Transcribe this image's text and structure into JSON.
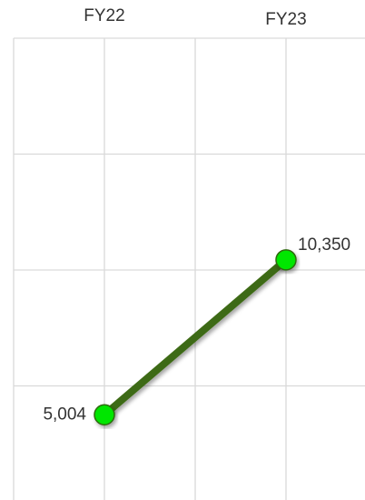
{
  "chart_data": {
    "type": "line",
    "categories": [
      "FY22",
      "FY23"
    ],
    "series": [
      {
        "color": "#3d6b12",
        "marker_color": "#00e600",
        "values": [
          5004,
          10350
        ],
        "value_labels": [
          "5,004",
          "10,350"
        ]
      }
    ],
    "ylim": [
      2000,
      18000
    ],
    "yticks": [
      6000,
      10000,
      14000,
      18000
    ],
    "grid": true
  }
}
